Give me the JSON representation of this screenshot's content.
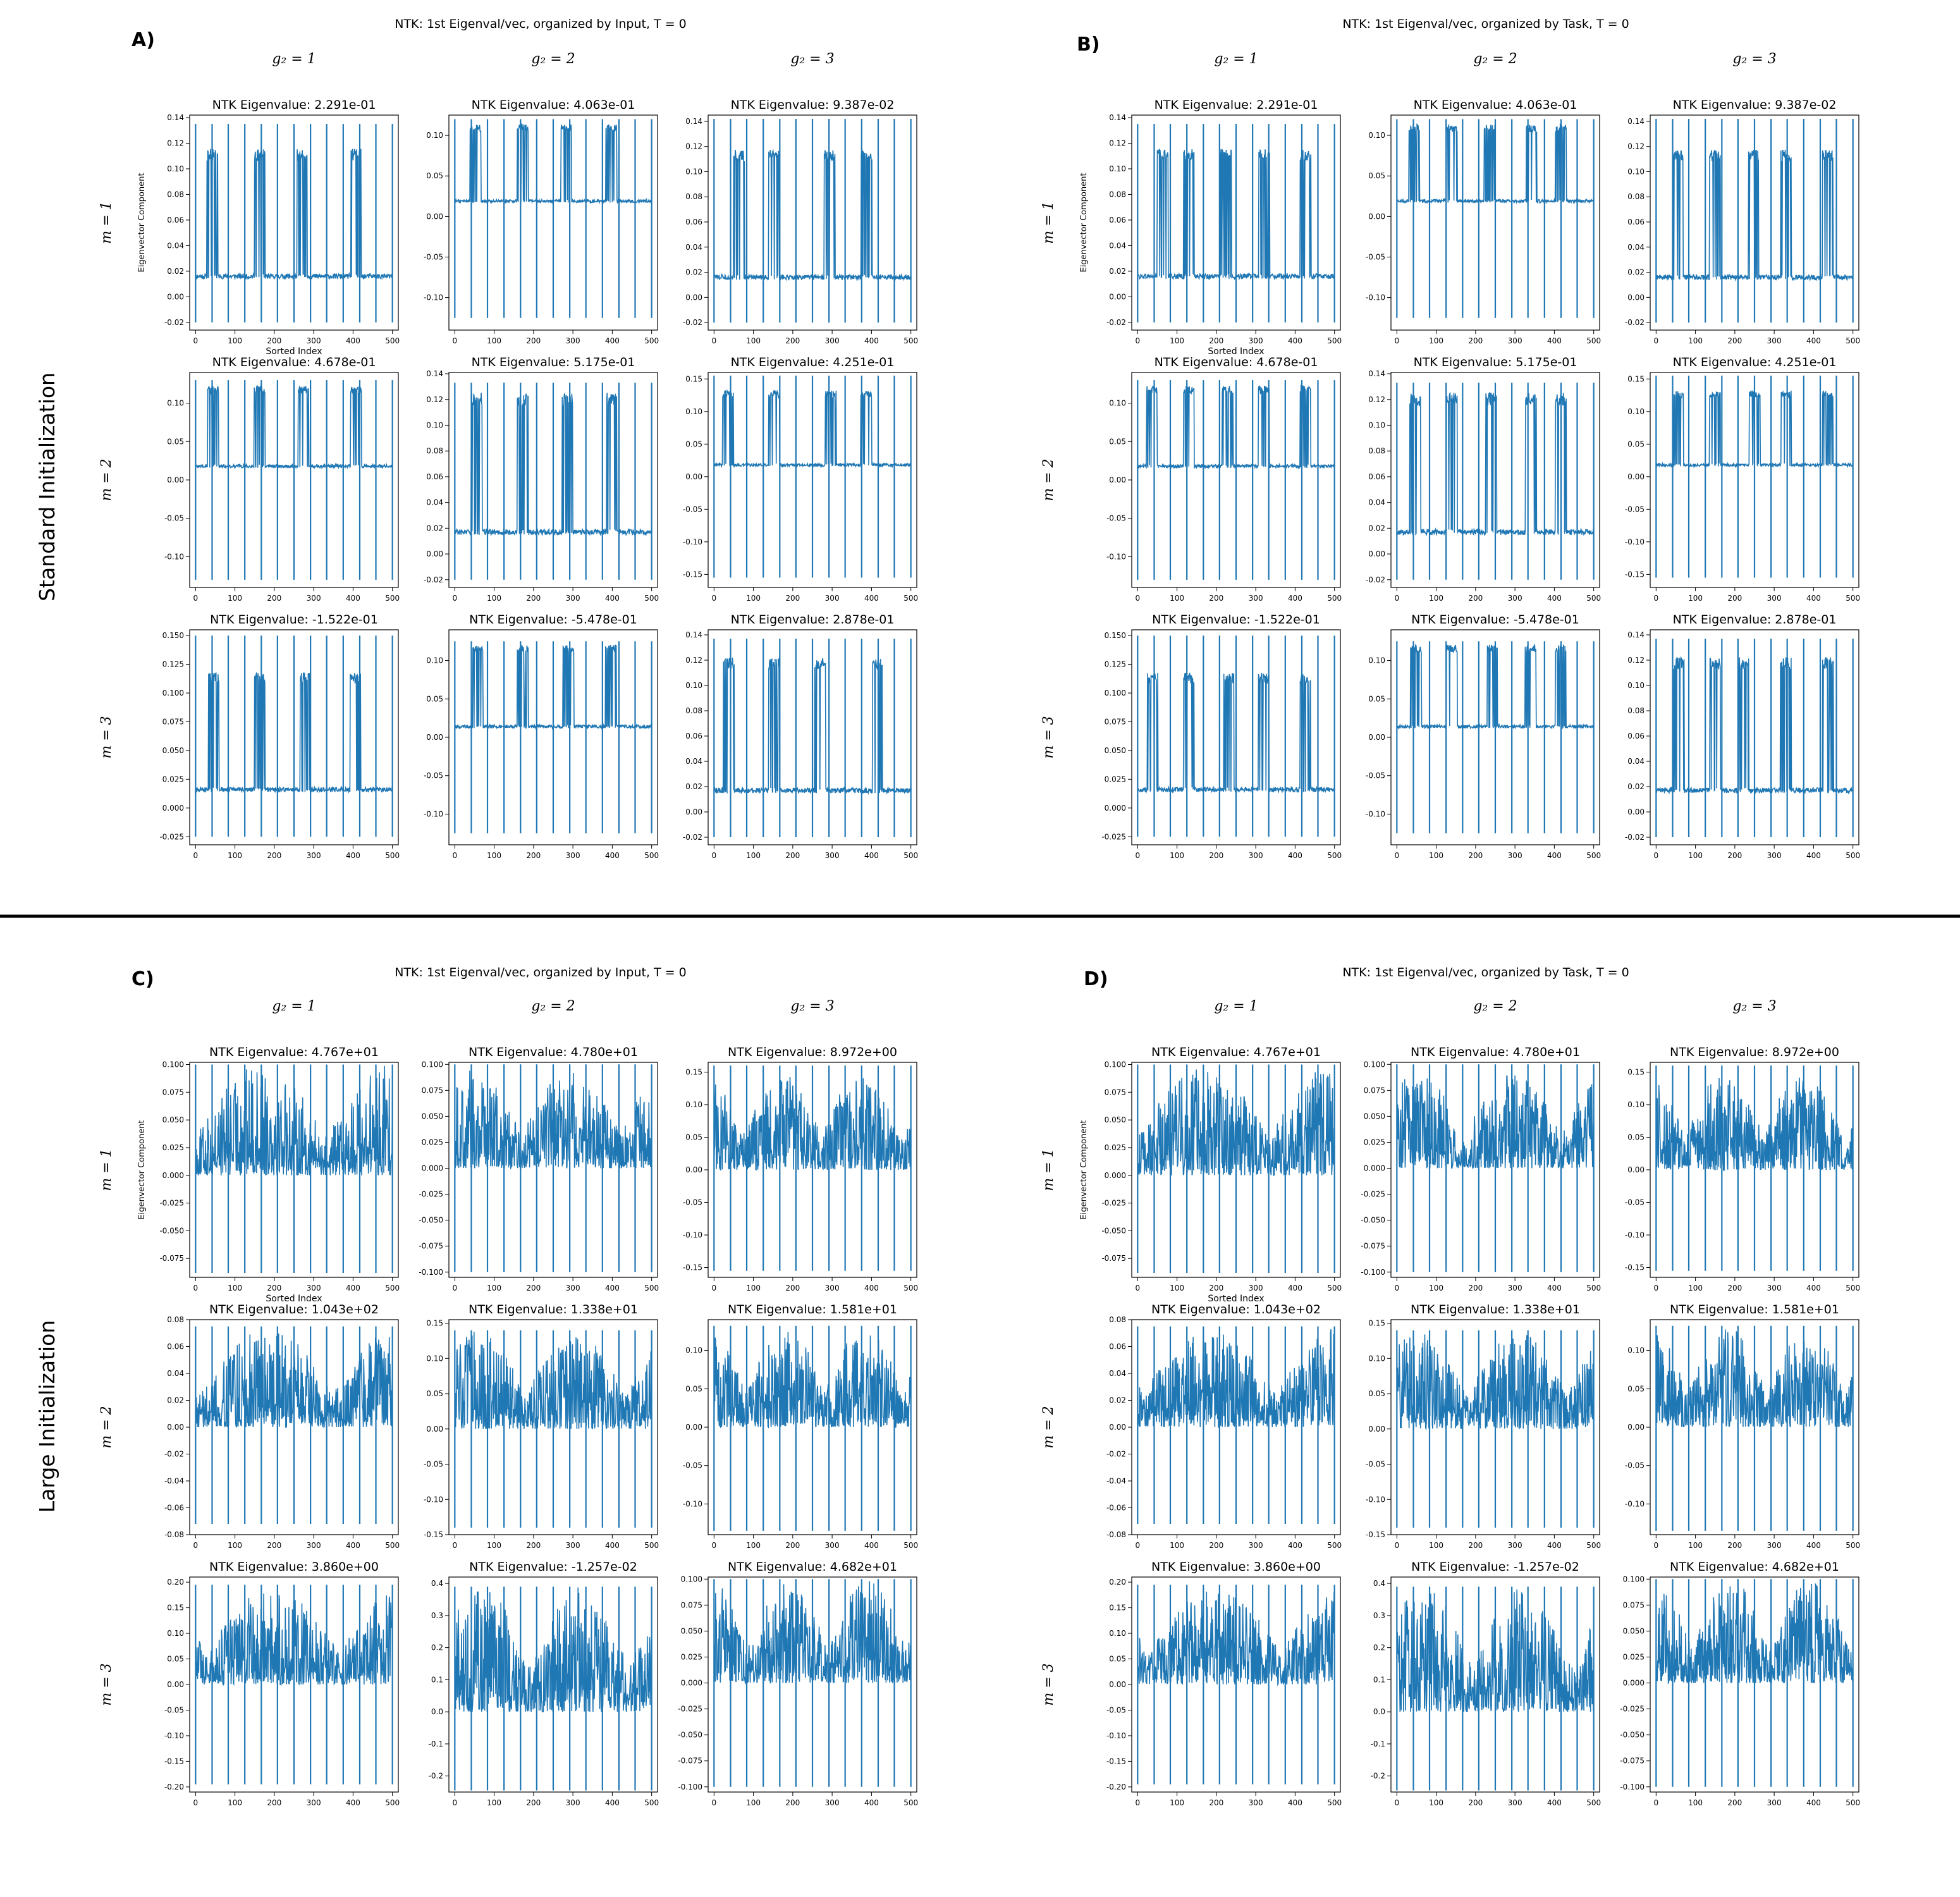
{
  "figure": {
    "divider": true,
    "panels": [
      {
        "label": "A)",
        "title": "NTK: 1st Eigenval/vec, organized by Input, T = 0",
        "row_label": "Standard Initialization",
        "style": "binary"
      },
      {
        "label": "B)",
        "title": "NTK: 1st Eigenval/vec, organized by Task, T = 0",
        "row_label": "",
        "style": "binary"
      },
      {
        "label": "C)",
        "title": "NTK: 1st Eigenval/vec, organized by Input, T = 0",
        "row_label": "Large Initialization",
        "style": "noisy"
      },
      {
        "label": "D)",
        "title": "NTK: 1st Eigenval/vec, organized by Task, T = 0",
        "row_label": "",
        "style": "noisy"
      }
    ],
    "col_labels": [
      "g₂ = 1",
      "g₂ = 2",
      "g₂ = 3"
    ],
    "row_labels": [
      "m = 1",
      "m = 2",
      "m = 3"
    ],
    "xlabel": "Sorted Index",
    "ylabel": "Eigenvector Component",
    "line_color": "#1f77b4",
    "xlim": [
      -15,
      515
    ],
    "xticks": [
      0,
      100,
      200,
      300,
      400,
      500
    ]
  },
  "chart_data": [
    {
      "type": "line",
      "panel": "A/B",
      "subplots": [
        {
          "row": 1,
          "col": 1,
          "title": "NTK Eigenvalue: 2.291e-01",
          "ylim": [
            -0.026,
            0.142
          ],
          "yticks": [
            "-0.02",
            "0.00",
            "0.02",
            "0.04",
            "0.06",
            "0.08",
            "0.10",
            "0.12",
            "0.14"
          ],
          "spike_low": -0.02,
          "spike_high": 0.135,
          "base": 0.016,
          "level": 0.118
        },
        {
          "row": 1,
          "col": 2,
          "title": "NTK Eigenvalue: 4.063e-01",
          "ylim": [
            -0.14,
            0.125
          ],
          "yticks": [
            "-0.10",
            "-0.05",
            "0.00",
            "0.05",
            "0.10"
          ],
          "spike_low": -0.125,
          "spike_high": 0.12,
          "base": 0.019,
          "level": 0.116
        },
        {
          "row": 1,
          "col": 3,
          "title": "NTK Eigenvalue: 9.387e-02",
          "ylim": [
            -0.026,
            0.145
          ],
          "yticks": [
            "-0.02",
            "0.00",
            "0.02",
            "0.04",
            "0.06",
            "0.08",
            "0.10",
            "0.12",
            "0.14"
          ],
          "spike_low": -0.02,
          "spike_high": 0.142,
          "base": 0.016,
          "level": 0.12
        },
        {
          "row": 2,
          "col": 1,
          "title": "NTK Eigenvalue: 4.678e-01",
          "ylim": [
            -0.14,
            0.14
          ],
          "yticks": [
            "-0.10",
            "-0.05",
            "0.00",
            "0.05",
            "0.10"
          ],
          "spike_low": -0.13,
          "spike_high": 0.13,
          "base": 0.018,
          "level": 0.125
        },
        {
          "row": 2,
          "col": 2,
          "title": "NTK Eigenvalue: 5.175e-01",
          "ylim": [
            -0.026,
            0.141
          ],
          "yticks": [
            "-0.02",
            "0.00",
            "0.02",
            "0.04",
            "0.06",
            "0.08",
            "0.10",
            "0.12",
            "0.14"
          ],
          "spike_low": -0.02,
          "spike_high": 0.133,
          "base": 0.017,
          "level": 0.128
        },
        {
          "row": 2,
          "col": 3,
          "title": "NTK Eigenvalue: 4.251e-01",
          "ylim": [
            -0.17,
            0.16
          ],
          "yticks": [
            "-0.15",
            "-0.10",
            "-0.05",
            "0.00",
            "0.05",
            "0.10",
            "0.15"
          ],
          "spike_low": -0.155,
          "spike_high": 0.155,
          "base": 0.018,
          "level": 0.135
        },
        {
          "row": 3,
          "col": 1,
          "title": "NTK Eigenvalue: -1.522e-01",
          "ylim": [
            -0.032,
            0.155
          ],
          "yticks": [
            "-0.025",
            "0.000",
            "0.025",
            "0.050",
            "0.075",
            "0.100",
            "0.125",
            "0.150"
          ],
          "spike_low": -0.025,
          "spike_high": 0.15,
          "base": 0.016,
          "level": 0.12
        },
        {
          "row": 3,
          "col": 2,
          "title": "NTK Eigenvalue: -5.478e-01",
          "ylim": [
            -0.14,
            0.14
          ],
          "yticks": [
            "-0.10",
            "-0.05",
            "0.00",
            "0.05",
            "0.10"
          ],
          "spike_low": -0.125,
          "spike_high": 0.125,
          "base": 0.014,
          "level": 0.123
        },
        {
          "row": 3,
          "col": 3,
          "title": "NTK Eigenvalue: 2.878e-01",
          "ylim": [
            -0.026,
            0.144
          ],
          "yticks": [
            "-0.02",
            "0.00",
            "0.02",
            "0.04",
            "0.06",
            "0.08",
            "0.10",
            "0.12",
            "0.14"
          ],
          "spike_low": -0.02,
          "spike_high": 0.137,
          "base": 0.017,
          "level": 0.125
        }
      ]
    },
    {
      "type": "line",
      "panel": "C/D",
      "subplots": [
        {
          "row": 1,
          "col": 1,
          "title": "NTK Eigenvalue: 4.767e+01",
          "ylim": [
            -0.092,
            0.102
          ],
          "yticks": [
            "-0.075",
            "-0.050",
            "-0.025",
            "0.000",
            "0.025",
            "0.050",
            "0.075",
            "0.100"
          ],
          "spike_low": -0.088,
          "spike_high": 0.1,
          "base": 0.0,
          "level": 0.1
        },
        {
          "row": 1,
          "col": 2,
          "title": "NTK Eigenvalue: 4.780e+01",
          "ylim": [
            -0.105,
            0.102
          ],
          "yticks": [
            "-0.100",
            "-0.075",
            "-0.050",
            "-0.025",
            "0.000",
            "0.025",
            "0.050",
            "0.075",
            "0.100"
          ],
          "spike_low": -0.1,
          "spike_high": 0.1,
          "base": 0.0,
          "level": 0.095
        },
        {
          "row": 1,
          "col": 3,
          "title": "NTK Eigenvalue: 8.972e+00",
          "ylim": [
            -0.165,
            0.165
          ],
          "yticks": [
            "-0.15",
            "-0.10",
            "-0.05",
            "0.00",
            "0.05",
            "0.10",
            "0.15"
          ],
          "spike_low": -0.155,
          "spike_high": 0.16,
          "base": 0.0,
          "level": 0.15
        },
        {
          "row": 2,
          "col": 1,
          "title": "NTK Eigenvalue: 1.043e+02",
          "ylim": [
            -0.08,
            0.08
          ],
          "yticks": [
            "-0.08",
            "-0.06",
            "-0.04",
            "-0.02",
            "0.00",
            "0.02",
            "0.04",
            "0.06",
            "0.08"
          ],
          "spike_low": -0.072,
          "spike_high": 0.075,
          "base": 0.0,
          "level": 0.075
        },
        {
          "row": 2,
          "col": 2,
          "title": "NTK Eigenvalue: 1.338e+01",
          "ylim": [
            -0.15,
            0.155
          ],
          "yticks": [
            "-0.15",
            "-0.10",
            "-0.05",
            "0.00",
            "0.05",
            "0.10",
            "0.15"
          ],
          "spike_low": -0.14,
          "spike_high": 0.14,
          "base": 0.0,
          "level": 0.14
        },
        {
          "row": 2,
          "col": 3,
          "title": "NTK Eigenvalue: 1.581e+01",
          "ylim": [
            -0.14,
            0.14
          ],
          "yticks": [
            "-0.10",
            "-0.05",
            "0.00",
            "0.05",
            "0.10"
          ],
          "spike_low": -0.135,
          "spike_high": 0.132,
          "base": 0.0,
          "level": 0.13
        },
        {
          "row": 3,
          "col": 1,
          "title": "NTK Eigenvalue: 3.860e+00",
          "ylim": [
            -0.21,
            0.21
          ],
          "yticks": [
            "-0.20",
            "-0.15",
            "-0.10",
            "-0.05",
            "0.00",
            "0.05",
            "0.10",
            "0.15",
            "0.20"
          ],
          "spike_low": -0.195,
          "spike_high": 0.195,
          "base": 0.0,
          "level": 0.19
        },
        {
          "row": 3,
          "col": 2,
          "title": "NTK Eigenvalue: -1.257e-02",
          "ylim": [
            -0.25,
            0.42
          ],
          "yticks": [
            "-0.2",
            "-0.1",
            "0.0",
            "0.1",
            "0.2",
            "0.3",
            "0.4"
          ],
          "spike_low": -0.245,
          "spike_high": 0.39,
          "base": 0.0,
          "level": 0.39
        },
        {
          "row": 3,
          "col": 3,
          "title": "NTK Eigenvalue: 4.682e+01",
          "ylim": [
            -0.105,
            0.102
          ],
          "yticks": [
            "-0.100",
            "-0.075",
            "-0.050",
            "-0.025",
            "0.000",
            "0.025",
            "0.050",
            "0.075",
            "0.100"
          ],
          "spike_low": -0.1,
          "spike_high": 0.1,
          "base": 0.0,
          "level": 0.1
        }
      ]
    }
  ]
}
